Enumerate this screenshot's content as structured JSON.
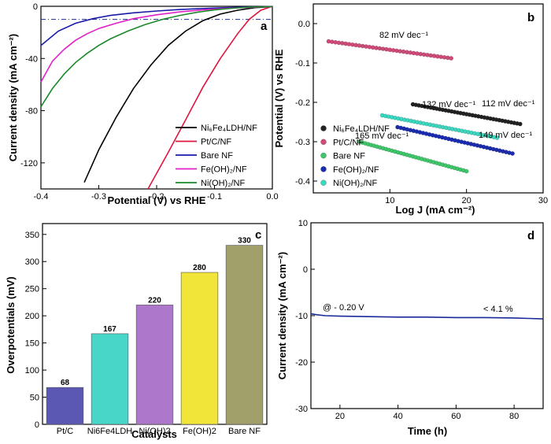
{
  "chart_data": [
    {
      "panel": "a",
      "type": "line",
      "xlabel": "Potential (V) vs RHE",
      "ylabel": "Current density (mA cm⁻²)",
      "xlim": [
        -0.4,
        0.0
      ],
      "ylim": [
        -140,
        0
      ],
      "xticks": [
        "-0.4",
        "-0.3",
        "-0.2",
        "-0.1",
        "0.0"
      ],
      "yticks": [
        "0",
        "-40",
        "-80",
        "-120"
      ],
      "legend_position": "lower-right",
      "reference_line_y": -10,
      "series": [
        {
          "name": "Ni₆Fe₄LDH/NF",
          "color": "#000000",
          "x": [
            -0.325,
            -0.3,
            -0.27,
            -0.24,
            -0.21,
            -0.18,
            -0.15,
            -0.12,
            -0.09,
            -0.06,
            -0.03,
            0.0
          ],
          "y": [
            -135,
            -110,
            -85,
            -63,
            -45,
            -30,
            -19,
            -11,
            -6,
            -3,
            -1,
            -0.3
          ]
        },
        {
          "name": "Pt/C/NF",
          "color": "#e0143c",
          "x": [
            -0.215,
            -0.18,
            -0.15,
            -0.12,
            -0.09,
            -0.06,
            -0.04,
            -0.02,
            0.0
          ],
          "y": [
            -140,
            -112,
            -87,
            -62,
            -40,
            -21,
            -10,
            -3,
            0
          ]
        },
        {
          "name": "Bare NF",
          "color": "#1a1aa8",
          "x": [
            -0.4,
            -0.37,
            -0.34,
            -0.31,
            -0.28,
            -0.24,
            -0.2,
            -0.16,
            -0.12,
            -0.08,
            -0.04,
            0.0
          ],
          "y": [
            -30,
            -19,
            -13,
            -9.5,
            -7,
            -5,
            -3.6,
            -2.5,
            -1.7,
            -1,
            -0.5,
            -0.2
          ]
        },
        {
          "name": "Fe(OH)₂/NF",
          "color": "#e020c8",
          "x": [
            -0.4,
            -0.38,
            -0.36,
            -0.34,
            -0.32,
            -0.3,
            -0.27,
            -0.24,
            -0.2,
            -0.16,
            -0.12,
            -0.08,
            -0.04,
            0.0
          ],
          "y": [
            -58,
            -42,
            -33,
            -26,
            -21,
            -17,
            -13,
            -9.5,
            -6.5,
            -4.3,
            -2.8,
            -1.6,
            -0.8,
            -0.2
          ]
        },
        {
          "name": "Ni(OH)₂/NF",
          "color": "#1a8a2a",
          "x": [
            -0.4,
            -0.38,
            -0.36,
            -0.34,
            -0.32,
            -0.3,
            -0.28,
            -0.25,
            -0.22,
            -0.19,
            -0.16,
            -0.13,
            -0.1,
            -0.07,
            -0.04,
            0.0
          ],
          "y": [
            -77,
            -63,
            -52,
            -43,
            -36,
            -30,
            -25,
            -19,
            -14,
            -10,
            -7,
            -4.6,
            -2.8,
            -1.5,
            -0.6,
            -0.2
          ]
        }
      ]
    },
    {
      "panel": "b",
      "type": "scatter",
      "xlabel": "Log J (mA cm⁻²)",
      "ylabel": "Potential (V) vs RHE",
      "xlim": [
        0,
        30
      ],
      "ylim": [
        -0.43,
        0.05
      ],
      "xticks": [
        "10",
        "20",
        "30"
      ],
      "yticks": [
        "0.0",
        "-0.1",
        "-0.2",
        "-0.3",
        "-0.4"
      ],
      "legend_position": "lower-left",
      "series": [
        {
          "name": "Ni₆Fe₄LDH/NF",
          "color": "#222222",
          "tafel": "112 mV dec⁻¹",
          "x": [
            13,
            27
          ],
          "y": [
            -0.205,
            -0.255
          ]
        },
        {
          "name": "Pt/C/NF",
          "color": "#d04a7a",
          "tafel": "82 mV dec⁻¹",
          "x": [
            2,
            18
          ],
          "y": [
            -0.045,
            -0.088
          ]
        },
        {
          "name": "Bare NF",
          "color": "#3ec86a",
          "tafel": "165 mV dec⁻¹",
          "x": [
            6,
            20
          ],
          "y": [
            -0.3,
            -0.375
          ]
        },
        {
          "name": "Fe(OH)₂/NF",
          "color": "#1a2cb0",
          "tafel": "149 mV dec⁻¹",
          "x": [
            11,
            26
          ],
          "y": [
            -0.263,
            -0.33
          ]
        },
        {
          "name": "Ni(OH)₂/NF",
          "color": "#3ad8c0",
          "tafel": "132 mV dec⁻¹",
          "x": [
            9,
            24
          ],
          "y": [
            -0.233,
            -0.29
          ]
        }
      ]
    },
    {
      "panel": "c",
      "type": "bar",
      "xlabel": "Catalysts",
      "ylabel": "Overpotentials (mV)",
      "ylim": [
        0,
        370
      ],
      "yticks": [
        "0",
        "50",
        "100",
        "150",
        "200",
        "250",
        "300",
        "350"
      ],
      "categories": [
        "Pt/C",
        "Ni6Fe4LDH",
        "Ni(OH)2",
        "Fe(OH)2",
        "Bare NF"
      ],
      "values": [
        68,
        167,
        220,
        280,
        330
      ],
      "value_labels": [
        "68",
        "167",
        "220",
        "280",
        "330"
      ],
      "colors": [
        "#5b58b4",
        "#47d6c8",
        "#ad78cc",
        "#f1e53a",
        "#a2a06a"
      ]
    },
    {
      "panel": "d",
      "type": "line",
      "xlabel": "Time (h)",
      "ylabel": "Current density (mA cm⁻²)",
      "xlim": [
        10,
        90
      ],
      "ylim": [
        -30,
        10
      ],
      "xticks": [
        "20",
        "40",
        "60",
        "80"
      ],
      "yticks": [
        "10",
        "0",
        "-10",
        "-20",
        "-30"
      ],
      "annotations": [
        "@ - 0.20 V",
        "< 4.1 %"
      ],
      "series": [
        {
          "color": "#1a2a9a",
          "x": [
            10,
            12,
            15,
            20,
            30,
            40,
            50,
            60,
            70,
            80,
            85,
            90
          ],
          "y": [
            -9.6,
            -9.8,
            -10.0,
            -10.1,
            -10.2,
            -10.3,
            -10.3,
            -10.4,
            -10.4,
            -10.5,
            -10.6,
            -10.7
          ]
        }
      ]
    }
  ]
}
